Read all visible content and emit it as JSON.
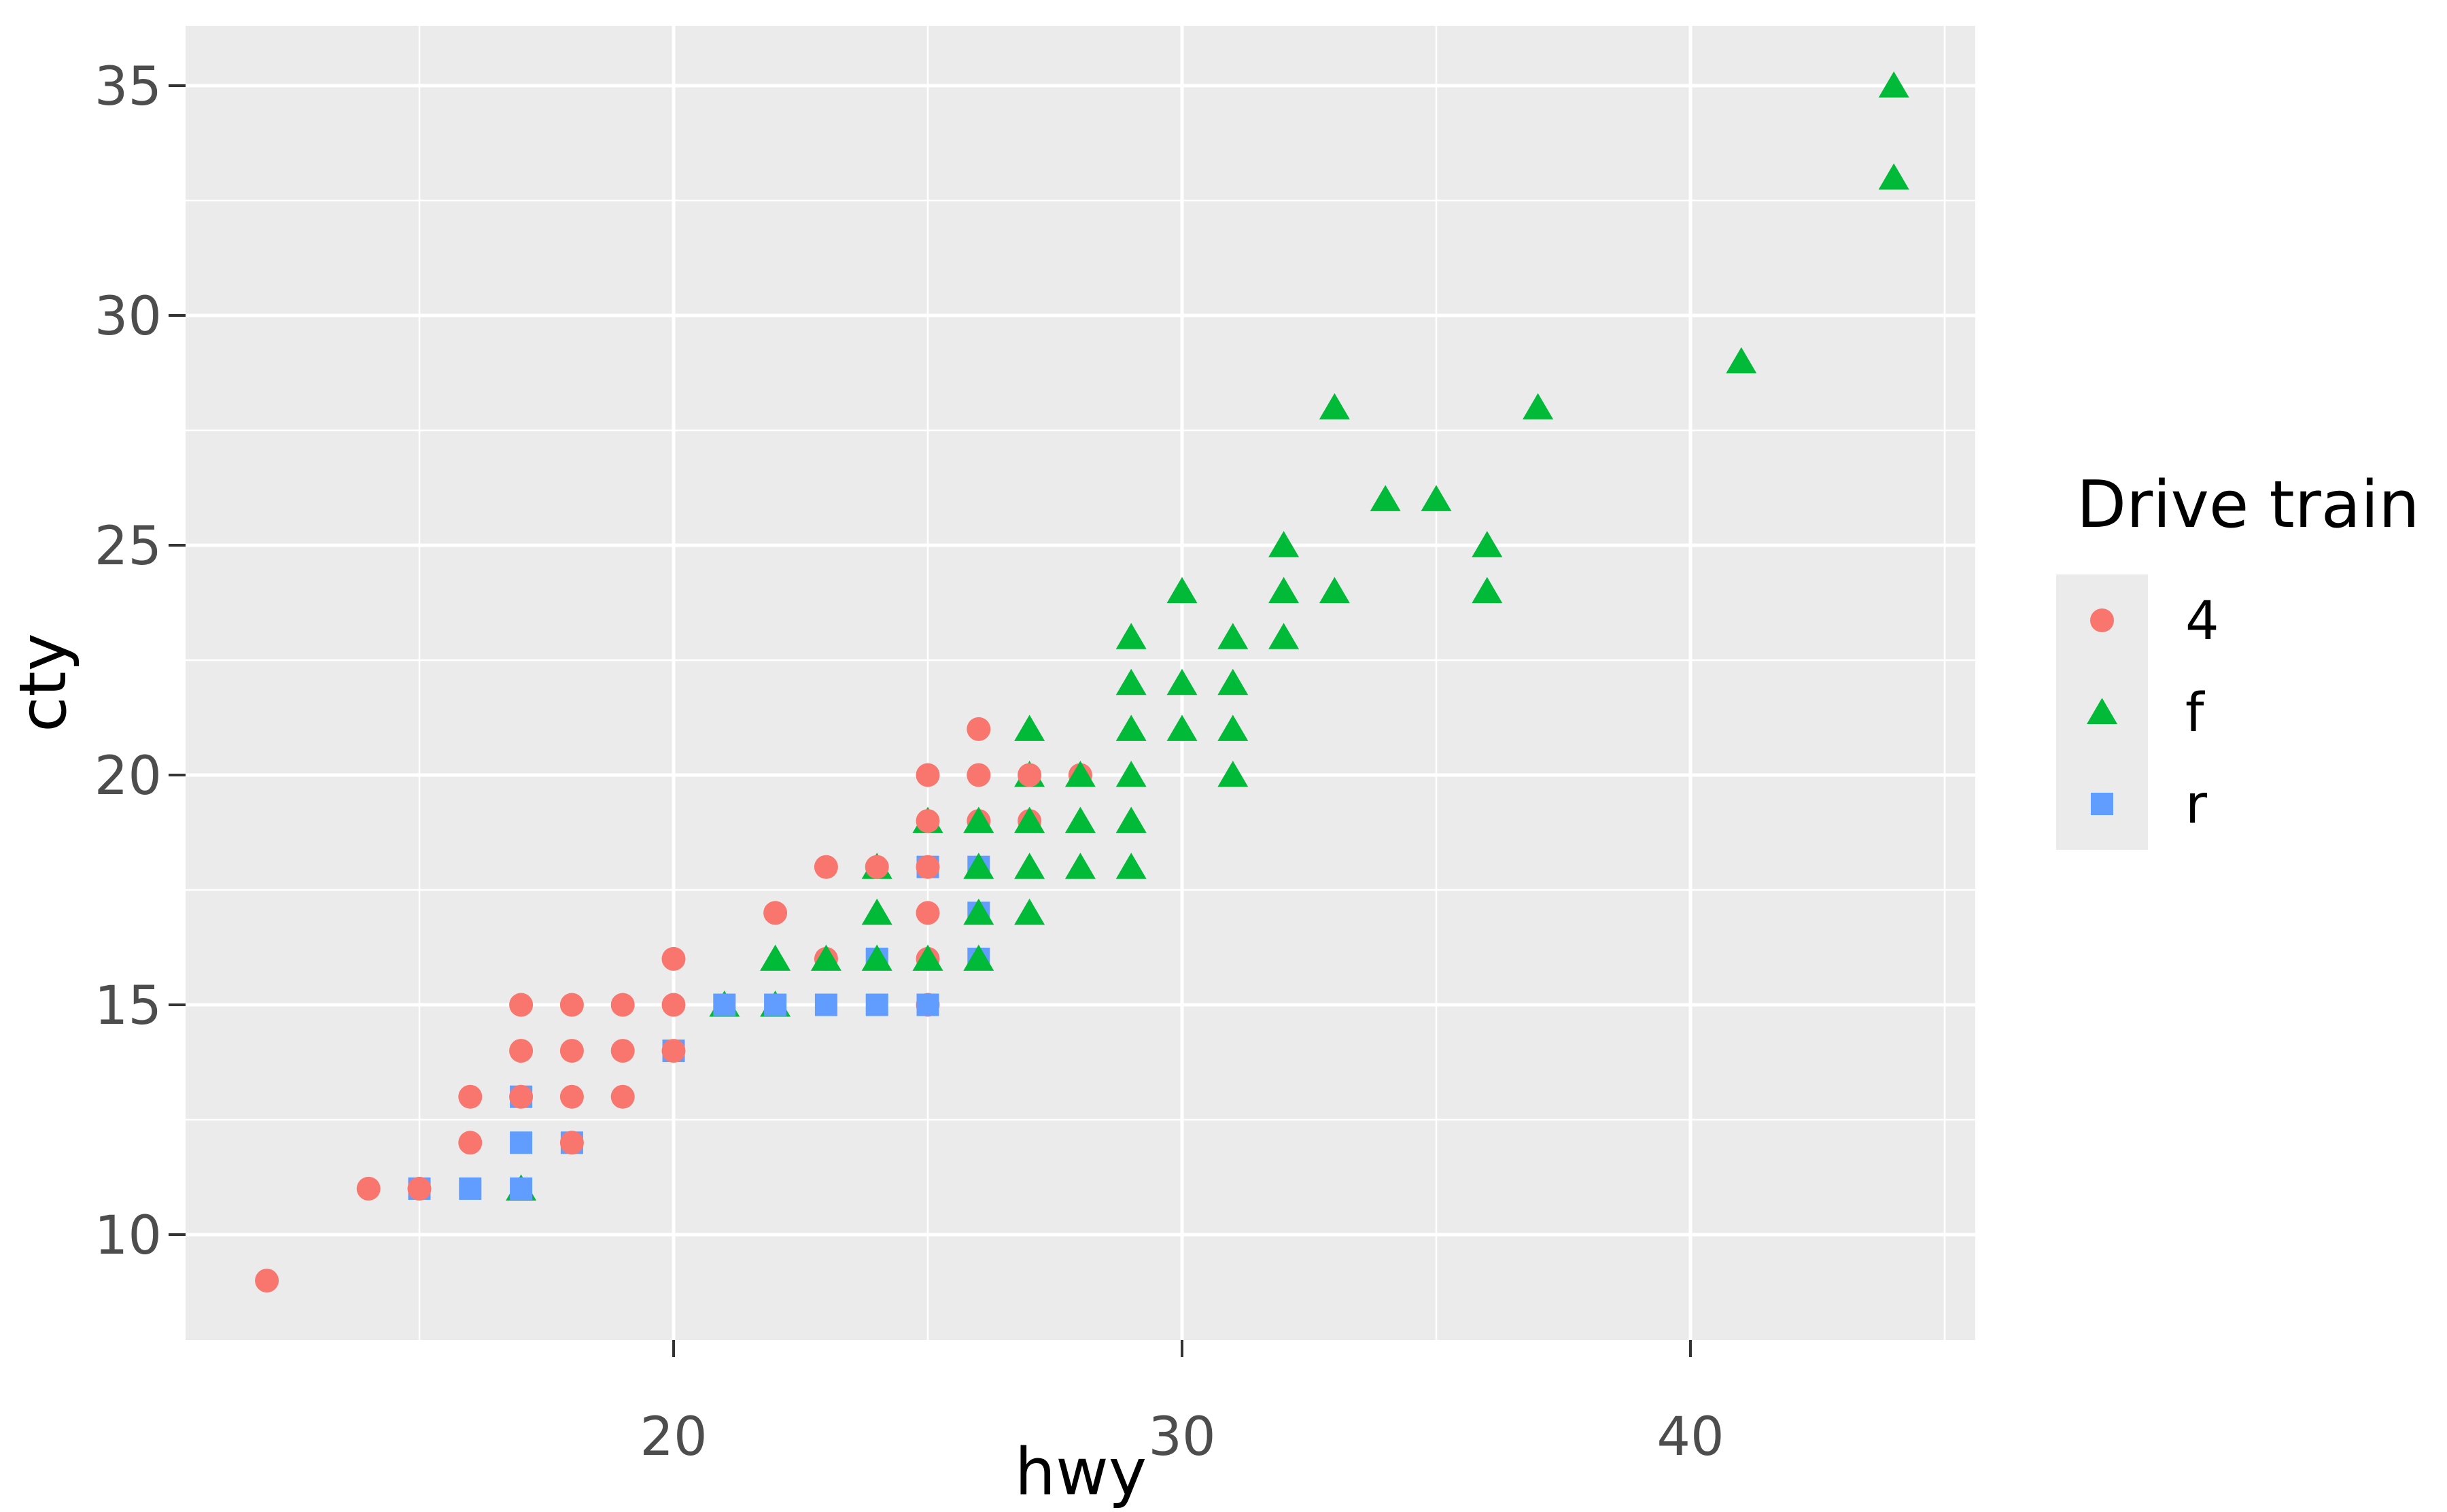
{
  "figure": {
    "background": "#FFFFFF",
    "panel_background": "#EBEBEB",
    "gridline_color": "#FFFFFF",
    "tick_mark_color": "#333333",
    "tick_text_color": "#4D4D4D"
  },
  "axes": {
    "x": {
      "label": "hwy",
      "tick_labels": [
        "20",
        "30",
        "40"
      ],
      "major_breaks": [
        20,
        30,
        40
      ],
      "minor_breaks": [
        15,
        25,
        35,
        45
      ],
      "domain": [
        10.4,
        45.6
      ]
    },
    "y": {
      "label": "cty",
      "tick_labels": [
        "10",
        "15",
        "20",
        "25",
        "30",
        "35"
      ],
      "major_breaks": [
        10,
        15,
        20,
        25,
        30,
        35
      ],
      "minor_breaks": [
        12.5,
        17.5,
        22.5,
        27.5,
        32.5
      ],
      "domain": [
        7.7,
        36.3
      ]
    }
  },
  "legend": {
    "title": "Drive train",
    "items": [
      {
        "label": "4",
        "shape": "circle",
        "color": "#F8766D"
      },
      {
        "label": "f",
        "shape": "triangle",
        "color": "#00BA38"
      },
      {
        "label": "r",
        "shape": "square",
        "color": "#619CFF"
      }
    ]
  },
  "chart_data": {
    "type": "scatter",
    "title": "",
    "xlabel": "hwy",
    "ylabel": "cty",
    "xlim": [
      10.4,
      45.6
    ],
    "ylim": [
      7.7,
      36.3
    ],
    "grid": true,
    "legend_position": "right",
    "shape_map": {
      "4": "circle",
      "f": "triangle",
      "r": "square"
    },
    "color_map": {
      "4": "#F8766D",
      "f": "#00BA38",
      "r": "#619CFF"
    },
    "points_note": "each point is [hwy, cty, drv]; draw order bottom-to-top for overlapping glyphs",
    "points": [
      [
        12,
        9,
        "4"
      ],
      [
        14,
        11,
        "4"
      ],
      [
        15,
        11,
        "r"
      ],
      [
        15,
        11,
        "4"
      ],
      [
        16,
        11,
        "r"
      ],
      [
        17,
        11,
        "f"
      ],
      [
        17,
        11,
        "r"
      ],
      [
        16,
        12,
        "4"
      ],
      [
        17,
        12,
        "r"
      ],
      [
        18,
        12,
        "r"
      ],
      [
        18,
        12,
        "4"
      ],
      [
        16,
        13,
        "4"
      ],
      [
        17,
        13,
        "r"
      ],
      [
        17,
        13,
        "4"
      ],
      [
        18,
        13,
        "4"
      ],
      [
        19,
        13,
        "4"
      ],
      [
        17,
        14,
        "4"
      ],
      [
        18,
        14,
        "4"
      ],
      [
        19,
        14,
        "4"
      ],
      [
        20,
        14,
        "r"
      ],
      [
        20,
        14,
        "4"
      ],
      [
        17,
        15,
        "4"
      ],
      [
        18,
        15,
        "4"
      ],
      [
        19,
        15,
        "4"
      ],
      [
        20,
        15,
        "4"
      ],
      [
        21,
        15,
        "f"
      ],
      [
        21,
        15,
        "r"
      ],
      [
        22,
        15,
        "f"
      ],
      [
        22,
        15,
        "r"
      ],
      [
        23,
        15,
        "r"
      ],
      [
        24,
        15,
        "r"
      ],
      [
        25,
        15,
        "4"
      ],
      [
        25,
        15,
        "r"
      ],
      [
        20,
        16,
        "4"
      ],
      [
        22,
        16,
        "f"
      ],
      [
        23,
        16,
        "4"
      ],
      [
        23,
        16,
        "f"
      ],
      [
        24,
        16,
        "r"
      ],
      [
        24,
        16,
        "f"
      ],
      [
        25,
        16,
        "4"
      ],
      [
        25,
        16,
        "f"
      ],
      [
        26,
        16,
        "r"
      ],
      [
        26,
        16,
        "f"
      ],
      [
        22,
        17,
        "4"
      ],
      [
        24,
        17,
        "f"
      ],
      [
        25,
        17,
        "4"
      ],
      [
        26,
        17,
        "r"
      ],
      [
        26,
        17,
        "f"
      ],
      [
        27,
        17,
        "f"
      ],
      [
        23,
        18,
        "4"
      ],
      [
        24,
        18,
        "f"
      ],
      [
        24,
        18,
        "4"
      ],
      [
        25,
        18,
        "r"
      ],
      [
        25,
        18,
        "4"
      ],
      [
        26,
        18,
        "r"
      ],
      [
        26,
        18,
        "f"
      ],
      [
        27,
        18,
        "f"
      ],
      [
        28,
        18,
        "f"
      ],
      [
        29,
        18,
        "f"
      ],
      [
        25,
        19,
        "f"
      ],
      [
        25,
        19,
        "4"
      ],
      [
        26,
        19,
        "4"
      ],
      [
        26,
        19,
        "f"
      ],
      [
        27,
        19,
        "4"
      ],
      [
        27,
        19,
        "f"
      ],
      [
        28,
        19,
        "f"
      ],
      [
        29,
        19,
        "f"
      ],
      [
        25,
        20,
        "4"
      ],
      [
        26,
        20,
        "4"
      ],
      [
        27,
        20,
        "f"
      ],
      [
        27,
        20,
        "4"
      ],
      [
        28,
        20,
        "4"
      ],
      [
        28,
        20,
        "f"
      ],
      [
        29,
        20,
        "f"
      ],
      [
        31,
        20,
        "f"
      ],
      [
        26,
        21,
        "4"
      ],
      [
        27,
        21,
        "f"
      ],
      [
        29,
        21,
        "f"
      ],
      [
        30,
        21,
        "f"
      ],
      [
        31,
        21,
        "f"
      ],
      [
        29,
        22,
        "f"
      ],
      [
        30,
        22,
        "f"
      ],
      [
        31,
        22,
        "f"
      ],
      [
        29,
        23,
        "f"
      ],
      [
        31,
        23,
        "f"
      ],
      [
        32,
        23,
        "f"
      ],
      [
        30,
        24,
        "f"
      ],
      [
        32,
        24,
        "f"
      ],
      [
        33,
        24,
        "f"
      ],
      [
        36,
        24,
        "f"
      ],
      [
        32,
        25,
        "f"
      ],
      [
        36,
        25,
        "f"
      ],
      [
        34,
        26,
        "f"
      ],
      [
        35,
        26,
        "f"
      ],
      [
        33,
        28,
        "f"
      ],
      [
        37,
        28,
        "f"
      ],
      [
        41,
        29,
        "f"
      ],
      [
        44,
        33,
        "f"
      ],
      [
        44,
        35,
        "f"
      ]
    ]
  }
}
